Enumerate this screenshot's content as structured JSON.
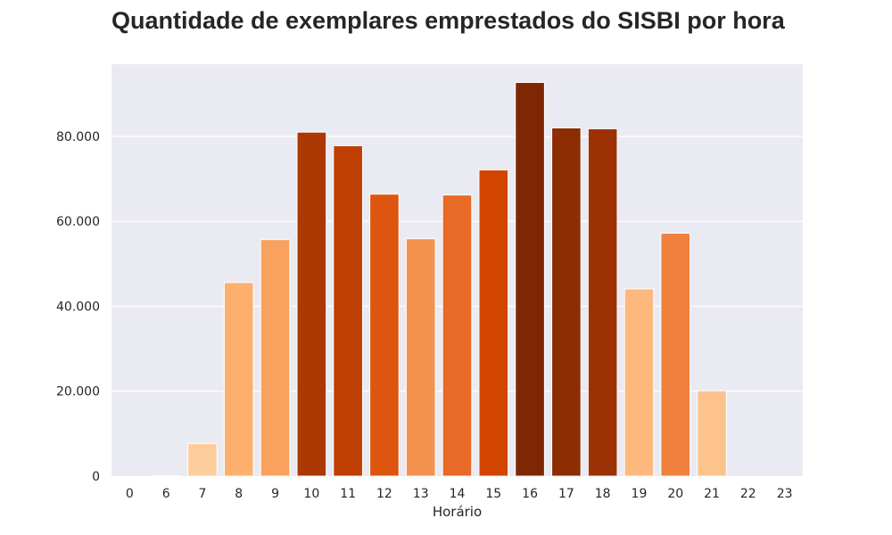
{
  "chart_data": {
    "type": "bar",
    "title": "Quantidade de exemplares emprestados do SISBI por hora",
    "xlabel": "Horário",
    "ylabel": "",
    "categories": [
      "0",
      "6",
      "7",
      "8",
      "9",
      "10",
      "11",
      "12",
      "13",
      "14",
      "15",
      "16",
      "17",
      "18",
      "19",
      "20",
      "21",
      "22",
      "23"
    ],
    "values": [
      0,
      100,
      7700,
      45600,
      55700,
      81000,
      77800,
      66400,
      55900,
      66200,
      72100,
      92700,
      82000,
      81800,
      44100,
      57200,
      20100,
      0,
      0
    ],
    "ylim": [
      0,
      97000
    ],
    "yticks": [
      0,
      20000,
      40000,
      60000,
      80000
    ],
    "ytick_labels": [
      "0",
      "20.000",
      "40.000",
      "60.000",
      "80.000"
    ],
    "grid": true,
    "palette": "Oranges",
    "colors": {
      "background": "#eaeaf2",
      "grid": "#ffffff",
      "text": "#262626"
    }
  }
}
